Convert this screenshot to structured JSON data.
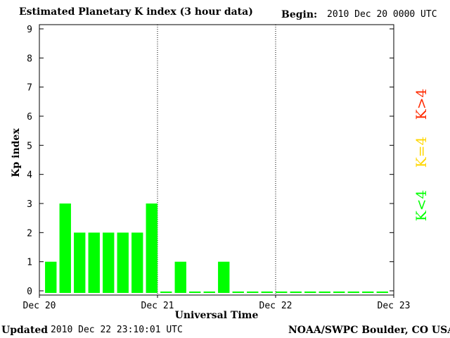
{
  "header": {
    "title": "Estimated Planetary K index (3 hour data)",
    "begin_label": "Begin:",
    "begin_value": "2010 Dec 20 0000 UTC"
  },
  "footer": {
    "updated_label": "Updated",
    "updated_value": "2010 Dec 22 23:10:01 UTC",
    "source": "NOAA/SWPC Boulder, CO USA"
  },
  "legend": {
    "high": "K>4",
    "equal": "K=4",
    "low": "K<4"
  },
  "colors": {
    "low": "#00ff00",
    "equal": "#ffd700",
    "high": "#ff2a00",
    "axis": "#000000"
  },
  "chart_data": {
    "type": "bar",
    "title": "Estimated Planetary K index (3 hour data)",
    "xlabel": "Universal Time",
    "ylabel": "Kp index",
    "ylim": [
      0,
      9
    ],
    "y_ticks": [
      "0",
      "1",
      "2",
      "3",
      "4",
      "5",
      "6",
      "7",
      "8",
      "9"
    ],
    "x_tick_labels": [
      "Dec 20",
      "Dec 21",
      "Dec 22",
      "Dec 23"
    ],
    "day_dividers": [
      "Dec 21",
      "Dec 22"
    ],
    "interval_hours": 3,
    "slots": 24,
    "values": [
      1,
      3,
      2,
      2,
      2,
      2,
      2,
      3,
      0,
      1,
      0,
      0,
      1,
      0,
      0,
      0,
      0,
      0,
      0,
      0,
      0,
      0,
      0,
      0
    ],
    "legend_position": "right"
  }
}
